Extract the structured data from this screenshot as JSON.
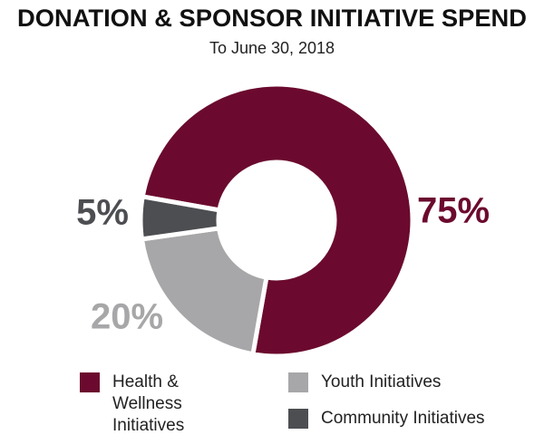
{
  "chart_data": {
    "type": "donut",
    "title": "DONATION & SPONSOR INITIATIVE SPEND",
    "subtitle": "To June 30, 2018",
    "categories": [
      "Health & Wellness Initiatives",
      "Youth Initiatives",
      "Community Initiatives"
    ],
    "values": [
      75,
      20,
      5
    ],
    "value_labels": [
      "75%",
      "20%",
      "5%"
    ],
    "colors": [
      "#6b0a2e",
      "#a7a7a9",
      "#4d4e52"
    ]
  }
}
